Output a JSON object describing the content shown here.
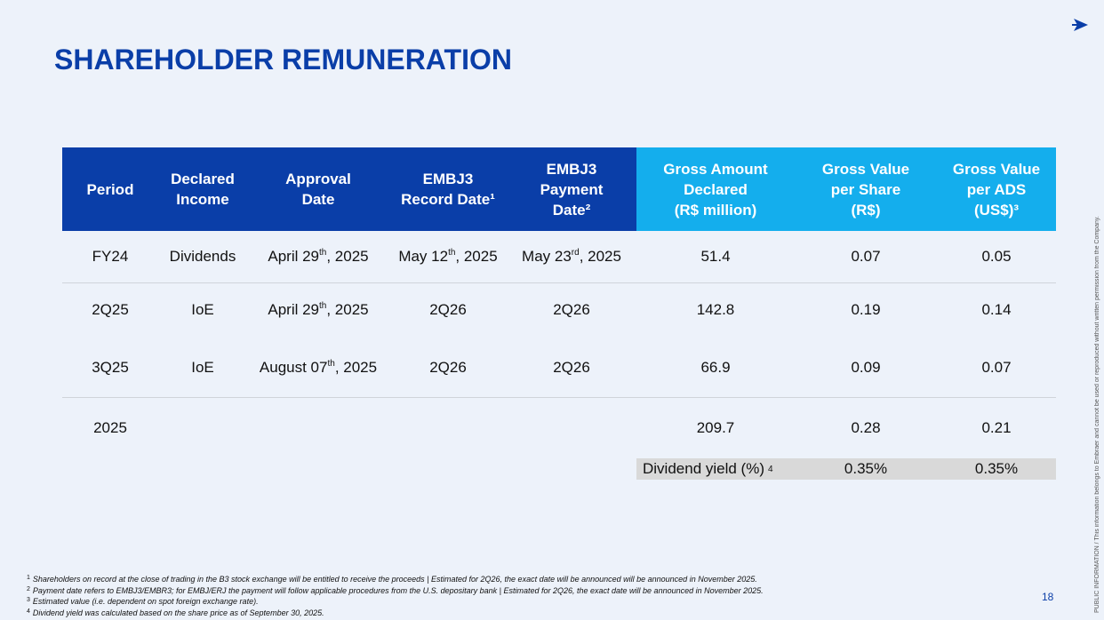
{
  "title": "SHAREHOLDER REMUNERATION",
  "table": {
    "headers": [
      [
        "Period"
      ],
      [
        "Declared",
        "Income"
      ],
      [
        "Approval",
        "Date"
      ],
      [
        "EMBJ3",
        "Record Date¹"
      ],
      [
        "EMBJ3",
        "Payment",
        "Date²"
      ],
      [
        "Gross Amount",
        "Declared",
        "(R$ million)"
      ],
      [
        "Gross Value",
        "per Share",
        "(R$)"
      ],
      [
        "Gross Value",
        "per ADS",
        "(US$)³"
      ]
    ],
    "rows": [
      [
        "FY24",
        "Dividends",
        [
          "April 29",
          "th",
          ", 2025"
        ],
        [
          "May 12",
          "th",
          ", 2025"
        ],
        [
          "May 23",
          "rd",
          ", 2025"
        ],
        "51.4",
        "0.07",
        "0.05"
      ],
      [
        "2Q25",
        "IoE",
        [
          "April 29",
          "th",
          ", 2025"
        ],
        "2Q26",
        "2Q26",
        "142.8",
        "0.19",
        "0.14"
      ],
      [
        "3Q25",
        "IoE",
        [
          "August 07",
          "th",
          ", 2025"
        ],
        "2Q26",
        "2Q26",
        "66.9",
        "0.09",
        "0.07"
      ],
      [
        "2025",
        "",
        "",
        "",
        "",
        "209.7",
        "0.28",
        "0.21"
      ]
    ],
    "yield": {
      "label": "Dividend yield (%)",
      "mark": "4",
      "values": [
        "0.35%",
        "0.35%"
      ]
    }
  },
  "footnotes": [
    {
      "mark": "1",
      "text": "Shareholders on record at the close of trading in the B3 stock exchange will be entitled to receive the proceeds | Estimated for 2Q26, the exact date will be announced will be announced in November 2025."
    },
    {
      "mark": "2",
      "text": "Payment date refers to EMBJ3/EMBR3; for EMBJ/ERJ the payment will follow applicable procedures from the U.S. depositary bank | Estimated for 2Q26, the exact date will be announced in November 2025."
    },
    {
      "mark": "3",
      "text": "Estimated value (i.e. dependent on spot foreign exchange rate)."
    },
    {
      "mark": "4",
      "text": "Dividend yield was calculated based on the share price as of September 30, 2025."
    }
  ],
  "page_number": "18",
  "classification": "PUBLIC INFORMATION",
  "disclaimer": "This information belongs to Embraer and cannot be used or reproduced without written permission from the Company."
}
